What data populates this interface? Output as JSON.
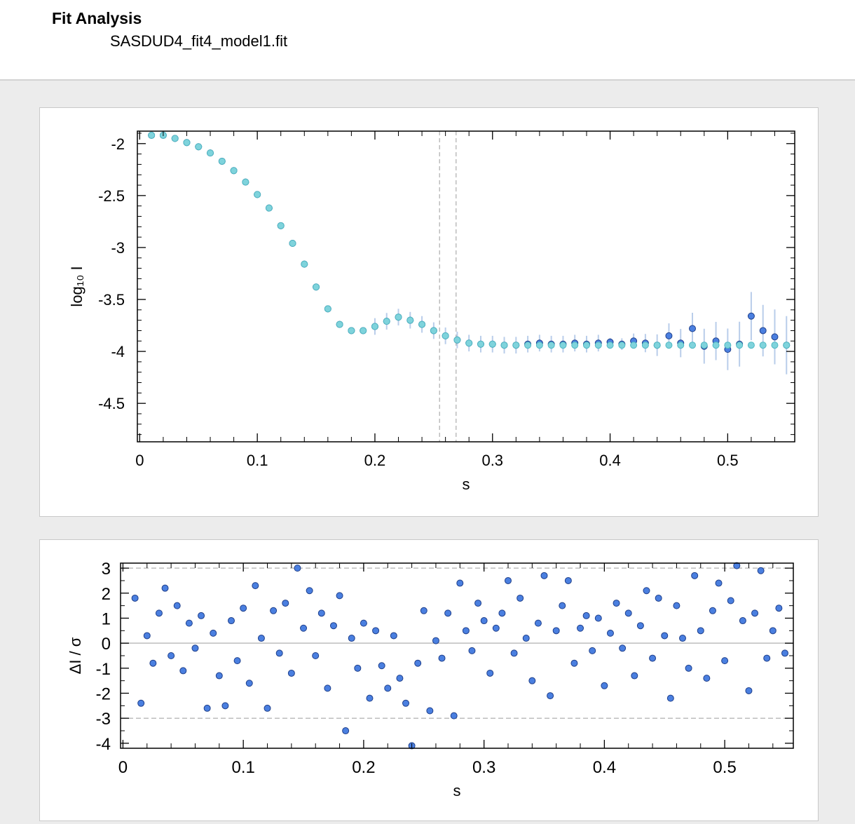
{
  "header": {
    "title": "Fit Analysis",
    "filename": "SASDUD4_fit4_model1.fit"
  },
  "colors": {
    "experimental": "#4a7fe0",
    "experimental_stroke": "#1f3f8a",
    "error_bars": "#b9cdea",
    "fit": "#7fd3dc",
    "fit_stroke": "#4fb7c2",
    "reference_lines": "#bdbdbd"
  },
  "chart_data": [
    {
      "type": "scatter",
      "xlabel": "s",
      "ylabel": "log₁₀ I",
      "xlim": [
        -0.002,
        0.557
      ],
      "ylim": [
        -4.87,
        -1.88
      ],
      "xticks": [
        0,
        0.1,
        0.2,
        0.3,
        0.4,
        0.5
      ],
      "xtick_labels": [
        "0",
        "0.1",
        "0.2",
        "0.3",
        "0.4",
        "0.5"
      ],
      "yticks": [
        -2,
        -2.5,
        -3,
        -3.5,
        -4,
        -4.5
      ],
      "ytick_labels": [
        "-2",
        "-2.5",
        "-3",
        "-3.5",
        "-4",
        "-4.5"
      ],
      "vertical_reference_lines": [
        0.255,
        0.269
      ],
      "series": [
        {
          "role": "experimental",
          "style": "points with error bars",
          "x": [
            0.01,
            0.02,
            0.03,
            0.04,
            0.05,
            0.06,
            0.07,
            0.08,
            0.09,
            0.1,
            0.11,
            0.12,
            0.13,
            0.14,
            0.15,
            0.16,
            0.17,
            0.18,
            0.19,
            0.2,
            0.21,
            0.22,
            0.23,
            0.24,
            0.25,
            0.26,
            0.27,
            0.28,
            0.29,
            0.3,
            0.31,
            0.32,
            0.33,
            0.34,
            0.35,
            0.36,
            0.37,
            0.38,
            0.39,
            0.4,
            0.41,
            0.42,
            0.43,
            0.44,
            0.45,
            0.46,
            0.47,
            0.48,
            0.49,
            0.5,
            0.51,
            0.52,
            0.53,
            0.54,
            0.55
          ],
          "y": [
            -1.92,
            -1.92,
            -1.95,
            -1.99,
            -2.03,
            -2.09,
            -2.17,
            -2.26,
            -2.37,
            -2.49,
            -2.62,
            -2.79,
            -2.96,
            -3.16,
            -3.38,
            -3.59,
            -3.74,
            -3.8,
            -3.8,
            -3.76,
            -3.71,
            -3.67,
            -3.7,
            -3.74,
            -3.8,
            -3.85,
            -3.89,
            -3.92,
            -3.93,
            -3.93,
            -3.94,
            -3.94,
            -3.93,
            -3.92,
            -3.93,
            -3.93,
            -3.92,
            -3.93,
            -3.92,
            -3.91,
            -3.93,
            -3.9,
            -3.92,
            -3.94,
            -3.85,
            -3.92,
            -3.78,
            -3.95,
            -3.9,
            -3.98,
            -3.93,
            -3.66,
            -3.8,
            -3.86,
            -3.94
          ]
        },
        {
          "role": "model fit",
          "style": "dense filled circles",
          "x": [
            0.01,
            0.02,
            0.03,
            0.04,
            0.05,
            0.06,
            0.07,
            0.08,
            0.09,
            0.1,
            0.11,
            0.12,
            0.13,
            0.14,
            0.15,
            0.16,
            0.17,
            0.18,
            0.19,
            0.2,
            0.21,
            0.22,
            0.23,
            0.24,
            0.25,
            0.26,
            0.27,
            0.28,
            0.29,
            0.3,
            0.31,
            0.32,
            0.33,
            0.34,
            0.35,
            0.36,
            0.37,
            0.38,
            0.39,
            0.4,
            0.41,
            0.42,
            0.43,
            0.44,
            0.45,
            0.46,
            0.47,
            0.48,
            0.49,
            0.5,
            0.51,
            0.52,
            0.53,
            0.54,
            0.55
          ],
          "y": [
            -1.92,
            -1.92,
            -1.95,
            -1.99,
            -2.03,
            -2.09,
            -2.17,
            -2.26,
            -2.37,
            -2.49,
            -2.62,
            -2.79,
            -2.96,
            -3.16,
            -3.38,
            -3.59,
            -3.74,
            -3.8,
            -3.8,
            -3.76,
            -3.71,
            -3.67,
            -3.7,
            -3.74,
            -3.8,
            -3.85,
            -3.89,
            -3.92,
            -3.93,
            -3.93,
            -3.94,
            -3.94,
            -3.94,
            -3.94,
            -3.94,
            -3.94,
            -3.94,
            -3.94,
            -3.94,
            -3.94,
            -3.94,
            -3.94,
            -3.94,
            -3.94,
            -3.94,
            -3.94,
            -3.94,
            -3.94,
            -3.94,
            -3.94,
            -3.94,
            -3.94,
            -3.94,
            -3.94,
            -3.94
          ]
        }
      ]
    },
    {
      "type": "scatter",
      "xlabel": "s",
      "ylabel": "ΔI / σ",
      "xlim": [
        -0.002,
        0.557
      ],
      "ylim": [
        -4.2,
        3.2
      ],
      "xticks": [
        0,
        0.1,
        0.2,
        0.3,
        0.4,
        0.5
      ],
      "xtick_labels": [
        "0",
        "0.1",
        "0.2",
        "0.3",
        "0.4",
        "0.5"
      ],
      "yticks": [
        3,
        2,
        1,
        0,
        -1,
        -2,
        -3,
        -4
      ],
      "ytick_labels": [
        "3",
        "2",
        "1",
        "0",
        "-1",
        "-2",
        "-3",
        "-4"
      ],
      "horizontal_reference_lines": [
        3,
        0,
        -3
      ],
      "series": [
        {
          "role": "residuals",
          "x": [
            0.01,
            0.015,
            0.02,
            0.025,
            0.03,
            0.035,
            0.04,
            0.045,
            0.05,
            0.055,
            0.06,
            0.065,
            0.07,
            0.075,
            0.08,
            0.085,
            0.09,
            0.095,
            0.1,
            0.105,
            0.11,
            0.115,
            0.12,
            0.125,
            0.13,
            0.135,
            0.14,
            0.145,
            0.15,
            0.155,
            0.16,
            0.165,
            0.17,
            0.175,
            0.18,
            0.185,
            0.19,
            0.195,
            0.2,
            0.205,
            0.21,
            0.215,
            0.22,
            0.225,
            0.23,
            0.235,
            0.24,
            0.245,
            0.25,
            0.255,
            0.26,
            0.265,
            0.27,
            0.275,
            0.28,
            0.285,
            0.29,
            0.295,
            0.3,
            0.305,
            0.31,
            0.315,
            0.32,
            0.325,
            0.33,
            0.335,
            0.34,
            0.345,
            0.35,
            0.355,
            0.36,
            0.365,
            0.37,
            0.375,
            0.38,
            0.385,
            0.39,
            0.395,
            0.4,
            0.405,
            0.41,
            0.415,
            0.42,
            0.425,
            0.43,
            0.435,
            0.44,
            0.445,
            0.45,
            0.455,
            0.46,
            0.465,
            0.47,
            0.475,
            0.48,
            0.485,
            0.49,
            0.495,
            0.5,
            0.505,
            0.51,
            0.515,
            0.52,
            0.525,
            0.53,
            0.535,
            0.54,
            0.545,
            0.55
          ],
          "y": [
            1.8,
            -2.4,
            0.3,
            -0.8,
            1.2,
            2.2,
            -0.5,
            1.5,
            -1.1,
            0.8,
            -0.2,
            1.1,
            -2.6,
            0.4,
            -1.3,
            -2.5,
            0.9,
            -0.7,
            1.4,
            -1.6,
            2.3,
            0.2,
            -2.6,
            1.3,
            -0.4,
            1.6,
            -1.2,
            3.0,
            0.6,
            2.1,
            -0.5,
            1.2,
            -1.8,
            0.7,
            1.9,
            -3.5,
            0.2,
            -1.0,
            0.8,
            -2.2,
            0.5,
            -0.9,
            -1.8,
            0.3,
            -1.4,
            -2.4,
            -4.1,
            -0.8,
            1.3,
            -2.7,
            0.1,
            -0.6,
            1.2,
            -2.9,
            2.4,
            0.5,
            -0.3,
            1.6,
            0.9,
            -1.2,
            0.6,
            1.2,
            2.5,
            -0.4,
            1.8,
            0.2,
            -1.5,
            0.8,
            2.7,
            -2.1,
            0.5,
            1.5,
            2.5,
            -0.8,
            0.6,
            1.1,
            -0.3,
            1.0,
            -1.7,
            0.4,
            1.6,
            -0.2,
            1.2,
            -1.3,
            0.7,
            2.1,
            -0.6,
            1.8,
            0.3,
            -2.2,
            1.5,
            0.2,
            -1.0,
            2.7,
            0.5,
            -1.4,
            1.3,
            2.4,
            -0.7,
            1.7,
            3.1,
            0.9,
            -1.9,
            1.2,
            2.9,
            -0.6,
            0.5,
            1.4,
            -0.4
          ]
        }
      ]
    }
  ]
}
